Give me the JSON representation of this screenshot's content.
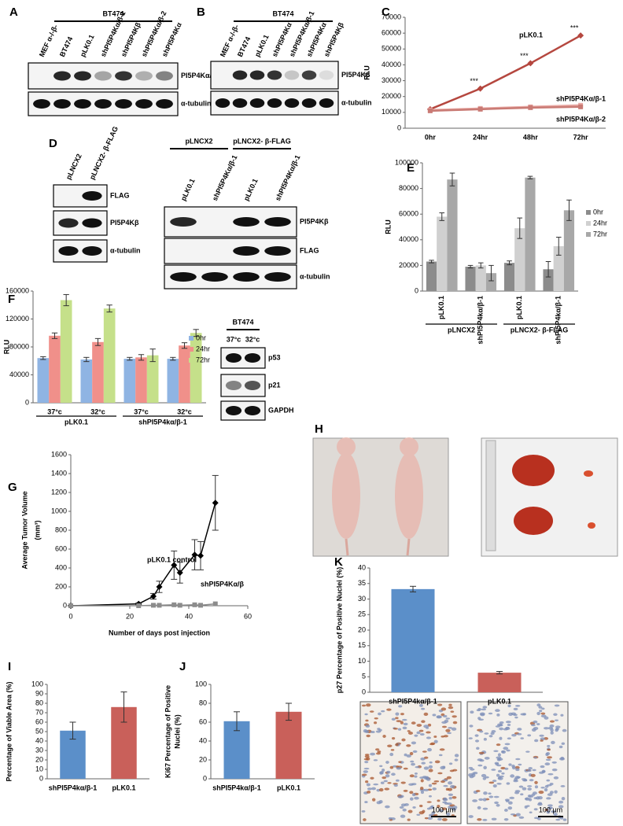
{
  "blots": [
    {
      "panel": "A",
      "groups": [
        "BT474"
      ],
      "lanes": [
        "MEF α-/-β-",
        "BT474",
        "pLK0.1",
        "shPI5P4Kα/β-1",
        "shPI5P4Kβ",
        "shPI5P4Kα/β-2",
        "shPI5P4Kα"
      ],
      "bands": [
        "PI5P4Kα/β",
        "α-tubulin"
      ]
    },
    {
      "panel": "B",
      "groups": [
        "BT474"
      ],
      "lanes": [
        "MEF α-/-β-",
        "BT474",
        "pLK0.1",
        "shPI5P4Kα",
        "shPI5P4Kα/β-1",
        "shPI5P4Kα",
        "shPI5P4Kβ"
      ],
      "bands": [
        "PI5P4Kβ",
        "α-tubulin"
      ]
    },
    {
      "panel": "D",
      "lanes": [
        "pLNCX2",
        "pLNCX2- β-FLAG"
      ],
      "bands": [
        "FLAG",
        "PI5P4Kβ",
        "α-tubulin"
      ]
    },
    {
      "groups": [
        "pLNCX2",
        "pLNCX2- β-FLAG"
      ],
      "lanes": [
        "pLK0.1",
        "shPI5P4Kα/β-1",
        "pLK0.1",
        "shPI5P4Kα/β-1"
      ],
      "bands": [
        "PI5P4Kβ",
        "FLAG",
        "α-tubulin"
      ]
    },
    {
      "groups": [
        "BT474"
      ],
      "lanes": [
        "37°c",
        "32°c"
      ],
      "bands": [
        "p53",
        "p21",
        "GAPDH"
      ]
    }
  ],
  "photos": {
    "panel": "H"
  },
  "micrographs": {
    "scale_bars": [
      "100 µm",
      "100 µm"
    ]
  },
  "chart_data": [
    {
      "type": "line",
      "panel": "C",
      "ylabel": "RLU",
      "categories": [
        "0hr",
        "24hr",
        "48hr",
        "72hr"
      ],
      "ylim": [
        0,
        70000
      ],
      "yticks": [
        0,
        10000,
        20000,
        30000,
        40000,
        50000,
        60000,
        70000
      ],
      "series": [
        {
          "name": "pLK0.1",
          "color": "#b5473f",
          "values": [
            12000,
            25000,
            41000,
            58500
          ]
        },
        {
          "name": "shPI5P4Kα/β-1",
          "color": "#e8a9a4",
          "values": [
            11500,
            12500,
            13500,
            14500
          ]
        },
        {
          "name": "shPI5P4Kα/β-2",
          "color": "#c97a74",
          "values": [
            11000,
            12000,
            13000,
            13500
          ]
        }
      ],
      "annotations": [
        {
          "text": "***",
          "x": "24hr"
        },
        {
          "text": "***",
          "x": "48hr"
        },
        {
          "text": "***",
          "x": "72hr"
        }
      ]
    },
    {
      "type": "bar",
      "panel": "E",
      "ylabel": "RLU",
      "categories": [
        "pLK0.1",
        "shPI5P4kα/β-1",
        "pLK0.1",
        "shPI5P4kα/β-1"
      ],
      "ylim": [
        0,
        100000
      ],
      "yticks": [
        0,
        20000,
        40000,
        60000,
        80000,
        100000
      ],
      "groups": [
        "pLNCX2",
        "pLNCX2- β-FLAG"
      ],
      "group_color": "#e0201b",
      "series": [
        {
          "name": "0hr",
          "color": "#8c8c8c",
          "values": [
            23000,
            19000,
            22000,
            17000
          ],
          "errors": [
            1000,
            1000,
            1500,
            6000
          ]
        },
        {
          "name": "24hr",
          "color": "#d0d0d0",
          "values": [
            58000,
            20000,
            49000,
            35000
          ],
          "errors": [
            3000,
            2000,
            8000,
            7000
          ]
        },
        {
          "name": "72hr",
          "color": "#a8a8a8",
          "values": [
            87000,
            14000,
            88500,
            63000
          ],
          "errors": [
            5000,
            6000,
            1000,
            8000
          ]
        }
      ]
    },
    {
      "type": "bar",
      "panel": "F",
      "ylabel": "RLU",
      "categories": [
        "37°c",
        "32°c",
        "37°c",
        "32°c"
      ],
      "ylim": [
        0,
        160000
      ],
      "yticks": [
        0,
        40000,
        80000,
        120000,
        160000
      ],
      "groups": [
        "pLK0.1",
        "shPI5P4kα/β-1"
      ],
      "group_color": "#000000",
      "series": [
        {
          "name": "0hr",
          "color": "#8fb4e3",
          "values": [
            64000,
            62000,
            63000,
            63000
          ],
          "errors": [
            2000,
            3000,
            2000,
            2000
          ]
        },
        {
          "name": "24hr",
          "color": "#f0908a",
          "values": [
            96000,
            87000,
            65000,
            82000
          ],
          "errors": [
            4000,
            5000,
            4000,
            4000
          ]
        },
        {
          "name": "72hr",
          "color": "#c5e08a",
          "values": [
            147000,
            135000,
            68000,
            100000
          ],
          "errors": [
            8000,
            5000,
            9000,
            5000
          ]
        }
      ]
    },
    {
      "type": "line",
      "panel": "G",
      "ylabel": [
        "Average Tumor Volume",
        "(mm³)"
      ],
      "xlabel": "Number of days post injection",
      "xlim": [
        0,
        60
      ],
      "xticks": [
        0,
        20,
        40,
        60
      ],
      "ylim": [
        0,
        1600
      ],
      "yticks": [
        0,
        200,
        400,
        600,
        800,
        1000,
        1200,
        1400,
        1600
      ],
      "series": [
        {
          "name": "pLK0.1 control",
          "color": "#000000",
          "x": [
            0,
            23,
            28,
            30,
            35,
            37,
            42,
            44,
            49
          ],
          "values": [
            0,
            20,
            100,
            200,
            430,
            350,
            540,
            530,
            1090
          ],
          "errors": [
            0,
            10,
            30,
            60,
            150,
            110,
            160,
            150,
            290
          ]
        },
        {
          "name": "shPI5P4Kα/β",
          "color": "#8c8c8c",
          "x": [
            0,
            23,
            28,
            30,
            35,
            37,
            42,
            44,
            49
          ],
          "values": [
            0,
            0,
            5,
            5,
            10,
            5,
            10,
            5,
            20
          ]
        }
      ]
    },
    {
      "type": "bar",
      "panel": "I",
      "ylabel": "Percentage of Viable Area (%)",
      "categories": [
        "shPI5P4kα/β-1",
        "pLK0.1"
      ],
      "ylim": [
        0,
        100
      ],
      "yticks": [
        0,
        10,
        20,
        30,
        40,
        50,
        60,
        70,
        80,
        90,
        100
      ],
      "values": [
        51,
        76
      ],
      "errors": [
        9,
        16
      ],
      "colors": [
        "#5b8fc9",
        "#c9605a"
      ]
    },
    {
      "type": "bar",
      "panel": "J",
      "ylabel": [
        "Ki67 Percentage of Positive",
        "Nuclei (%)"
      ],
      "categories": [
        "shPI5P4kα/β-1",
        "pLK0.1"
      ],
      "ylim": [
        0,
        100
      ],
      "yticks": [
        0,
        20,
        40,
        60,
        80,
        100
      ],
      "values": [
        61,
        71
      ],
      "errors": [
        10,
        9
      ],
      "colors": [
        "#5b8fc9",
        "#c9605a"
      ]
    },
    {
      "type": "bar",
      "panel": "K",
      "ylabel": "p27 Percentage of Positive Nuclei (%)",
      "categories": [
        "shPI5P4kα/β-1",
        "pLK0.1"
      ],
      "ylim": [
        0,
        40
      ],
      "yticks": [
        0,
        5,
        10,
        15,
        20,
        25,
        30,
        35,
        40
      ],
      "values": [
        33.2,
        6.3
      ],
      "errors": [
        0.9,
        0.4
      ],
      "colors": [
        "#5b8fc9",
        "#c9605a"
      ]
    }
  ]
}
